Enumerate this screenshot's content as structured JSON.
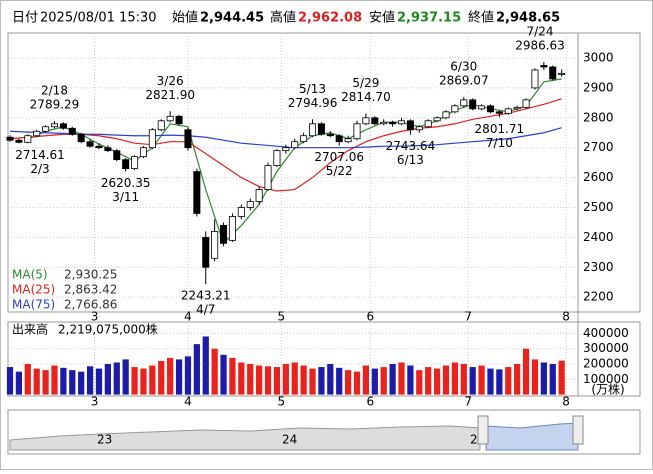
{
  "header": {
    "date_label": "日付",
    "datetime": "2025/08/01 15:30",
    "open_label": "始値",
    "open": {
      "value": 2944.45,
      "label": "2,944.45"
    },
    "high_label": "高値",
    "high": {
      "value": 2962.08,
      "label": "2,962.08"
    },
    "low_label": "安値",
    "low": {
      "value": 2937.15,
      "label": "2,937.15"
    },
    "close_label": "終値",
    "close": {
      "value": 2948.65,
      "label": "2,948.65"
    }
  },
  "chart_data": {
    "type": "candlestick",
    "x": [
      0,
      2,
      4,
      6,
      8,
      10,
      12,
      14,
      16,
      18,
      20,
      22,
      24,
      26,
      28,
      30,
      32,
      34,
      36,
      38,
      40,
      42,
      44,
      46,
      48,
      50,
      52,
      54,
      56,
      58,
      60,
      62,
      64,
      66,
      68,
      70,
      72,
      74,
      76,
      78,
      80,
      82,
      84,
      86,
      88,
      90,
      92,
      94,
      96,
      98,
      100,
      102,
      104,
      106,
      108,
      110,
      112,
      114,
      116,
      118,
      120,
      122,
      124
    ],
    "ohlc": [
      [
        2735,
        2742,
        2720,
        2725
      ],
      [
        2725,
        2730,
        2714.61,
        2718
      ],
      [
        2718,
        2745,
        2715,
        2740
      ],
      [
        2740,
        2760,
        2735,
        2755
      ],
      [
        2755,
        2775,
        2750,
        2770
      ],
      [
        2770,
        2789.29,
        2765,
        2780
      ],
      [
        2780,
        2785,
        2760,
        2765
      ],
      [
        2765,
        2770,
        2740,
        2745
      ],
      [
        2745,
        2750,
        2715,
        2720
      ],
      [
        2720,
        2728,
        2700,
        2705
      ],
      [
        2705,
        2715,
        2695,
        2700
      ],
      [
        2700,
        2708,
        2685,
        2690
      ],
      [
        2690,
        2695,
        2655,
        2660
      ],
      [
        2660,
        2665,
        2620.35,
        2630
      ],
      [
        2630,
        2675,
        2625,
        2670
      ],
      [
        2670,
        2705,
        2665,
        2700
      ],
      [
        2700,
        2765,
        2695,
        2760
      ],
      [
        2760,
        2795,
        2755,
        2790
      ],
      [
        2790,
        2821.9,
        2785,
        2805
      ],
      [
        2805,
        2810,
        2775,
        2780
      ],
      [
        2760,
        2765,
        2690,
        2700
      ],
      [
        2620,
        2630,
        2470,
        2480
      ],
      [
        2400,
        2420,
        2243.21,
        2300
      ],
      [
        2330,
        2460,
        2320,
        2420
      ],
      [
        2440,
        2450,
        2370,
        2380
      ],
      [
        2390,
        2480,
        2385,
        2470
      ],
      [
        2470,
        2510,
        2460,
        2500
      ],
      [
        2500,
        2530,
        2490,
        2520
      ],
      [
        2520,
        2570,
        2510,
        2560
      ],
      [
        2560,
        2650,
        2555,
        2640
      ],
      [
        2640,
        2695,
        2635,
        2690
      ],
      [
        2690,
        2710,
        2680,
        2700
      ],
      [
        2700,
        2730,
        2695,
        2720
      ],
      [
        2720,
        2750,
        2715,
        2740
      ],
      [
        2740,
        2794.96,
        2735,
        2780
      ],
      [
        2780,
        2785,
        2740,
        2745
      ],
      [
        2745,
        2755,
        2735,
        2740
      ],
      [
        2740,
        2745,
        2707.06,
        2720
      ],
      [
        2720,
        2740,
        2715,
        2730
      ],
      [
        2730,
        2790,
        2725,
        2780
      ],
      [
        2780,
        2814.7,
        2775,
        2800
      ],
      [
        2800,
        2805,
        2775,
        2780
      ],
      [
        2780,
        2795,
        2775,
        2785
      ],
      [
        2785,
        2790,
        2770,
        2780
      ],
      [
        2780,
        2800,
        2775,
        2790
      ],
      [
        2790,
        2795,
        2743.64,
        2760
      ],
      [
        2760,
        2775,
        2750,
        2770
      ],
      [
        2770,
        2795,
        2765,
        2790
      ],
      [
        2790,
        2805,
        2785,
        2800
      ],
      [
        2800,
        2825,
        2795,
        2820
      ],
      [
        2820,
        2845,
        2815,
        2840
      ],
      [
        2840,
        2869.07,
        2835,
        2860
      ],
      [
        2860,
        2865,
        2825,
        2830
      ],
      [
        2830,
        2845,
        2825,
        2840
      ],
      [
        2840,
        2845,
        2815,
        2820
      ],
      [
        2820,
        2825,
        2801.71,
        2815
      ],
      [
        2815,
        2835,
        2810,
        2830
      ],
      [
        2830,
        2840,
        2825,
        2835
      ],
      [
        2835,
        2865,
        2830,
        2860
      ],
      [
        2900,
        2965,
        2895,
        2960
      ],
      [
        2975,
        2986.63,
        2960,
        2970
      ],
      [
        2970,
        2975,
        2925,
        2930
      ],
      [
        2944.45,
        2962.08,
        2937.15,
        2948.65
      ]
    ],
    "xlim": [
      0,
      127
    ],
    "ylim": [
      2157,
      3077
    ],
    "xticks": [
      {
        "value": 19,
        "label": "3"
      },
      {
        "value": 40,
        "label": "4"
      },
      {
        "value": 61,
        "label": "5"
      },
      {
        "value": 81,
        "label": "6"
      },
      {
        "value": 103,
        "label": "7"
      },
      {
        "value": 125,
        "label": "8"
      }
    ],
    "yticks": [
      2200,
      2300,
      2400,
      2500,
      2600,
      2700,
      2800,
      2900,
      3000
    ],
    "up_color": "#ffffff",
    "down_color": "#000000",
    "moving_averages": [
      {
        "name": "MA(5)",
        "color": "#2e8b2e",
        "latest": {
          "value": 2930.25,
          "label": "2,930.25"
        },
        "x": [
          4,
          8,
          12,
          16,
          20,
          24,
          28,
          32,
          36,
          40,
          44,
          48,
          52,
          56,
          60,
          64,
          68,
          72,
          76,
          80,
          84,
          88,
          92,
          96,
          100,
          104,
          108,
          112,
          116,
          120,
          124
        ],
        "values": [
          2728,
          2755,
          2770,
          2745,
          2712,
          2685,
          2655,
          2700,
          2780,
          2770,
          2560,
          2380,
          2440,
          2510,
          2620,
          2700,
          2740,
          2750,
          2730,
          2760,
          2785,
          2785,
          2770,
          2790,
          2825,
          2845,
          2830,
          2820,
          2840,
          2920,
          2930.25
        ]
      },
      {
        "name": "MA(25)",
        "color": "#e02020",
        "latest": {
          "value": 2863.42,
          "label": "2,863.42"
        },
        "x": [
          0,
          4,
          8,
          12,
          16,
          20,
          24,
          28,
          32,
          36,
          40,
          44,
          48,
          52,
          56,
          60,
          64,
          68,
          72,
          76,
          80,
          84,
          88,
          92,
          96,
          100,
          104,
          108,
          112,
          116,
          120,
          124
        ],
        "values": [
          2730,
          2735,
          2740,
          2745,
          2745,
          2740,
          2730,
          2715,
          2710,
          2720,
          2720,
          2680,
          2640,
          2600,
          2570,
          2555,
          2560,
          2600,
          2650,
          2690,
          2720,
          2740,
          2755,
          2765,
          2770,
          2780,
          2795,
          2805,
          2815,
          2830,
          2845,
          2863.42
        ]
      },
      {
        "name": "MA(75)",
        "color": "#2a3fd0",
        "latest": {
          "value": 2766.86,
          "label": "2,766.86"
        },
        "x": [
          0,
          4,
          8,
          12,
          16,
          20,
          24,
          28,
          32,
          36,
          40,
          44,
          48,
          52,
          56,
          60,
          64,
          68,
          72,
          76,
          80,
          84,
          88,
          92,
          96,
          100,
          104,
          108,
          112,
          116,
          120,
          124
        ],
        "values": [
          2755,
          2752,
          2750,
          2748,
          2745,
          2745,
          2742,
          2740,
          2740,
          2742,
          2740,
          2735,
          2725,
          2715,
          2710,
          2705,
          2700,
          2700,
          2700,
          2700,
          2702,
          2705,
          2705,
          2707,
          2710,
          2715,
          2720,
          2725,
          2730,
          2740,
          2750,
          2766.86
        ]
      }
    ],
    "annotations": [
      {
        "date": "2/3",
        "value": 2714.61,
        "x": 2,
        "pos": "below"
      },
      {
        "date": "2/18",
        "value": 2789.29,
        "x": 10,
        "pos": "above"
      },
      {
        "date": "3/11",
        "value": 2620.35,
        "x": 26,
        "pos": "below"
      },
      {
        "date": "3/26",
        "value": {
          "value": 2821.9,
          "label": "2821.90"
        },
        "x": 36,
        "pos": "above"
      },
      {
        "date": "4/7",
        "value": 2243.21,
        "x": 44,
        "pos": "below"
      },
      {
        "date": "5/13",
        "value": 2794.96,
        "x": 68,
        "pos": "above"
      },
      {
        "date": "5/22",
        "value": 2707.06,
        "x": 74,
        "pos": "below"
      },
      {
        "date": "5/29",
        "value": {
          "value": 2814.7,
          "label": "2814.70"
        },
        "x": 80,
        "pos": "above"
      },
      {
        "date": "6/13",
        "value": 2743.64,
        "x": 90,
        "pos": "below"
      },
      {
        "date": "6/30",
        "value": 2869.07,
        "x": 102,
        "pos": "above"
      },
      {
        "date": "7/10",
        "value": 2801.71,
        "x": 110,
        "pos": "below"
      },
      {
        "date": "7/24",
        "value": 2986.63,
        "x": 120,
        "pos": "above"
      }
    ],
    "volume": {
      "label": "出来高",
      "latest": {
        "value": 2219075000,
        "label": "2,219,075,000株"
      },
      "unit": "(万株)",
      "up_color": "#e8221c",
      "down_color": "#1c1ca8",
      "values": [
        180000,
        150000,
        200000,
        170000,
        160000,
        190000,
        175000,
        160000,
        150000,
        185000,
        170000,
        200000,
        210000,
        230000,
        180000,
        170000,
        190000,
        220000,
        240000,
        230000,
        250000,
        330000,
        380000,
        300000,
        260000,
        240000,
        210000,
        200000,
        190000,
        185000,
        180000,
        200000,
        210000,
        190000,
        170000,
        180000,
        200000,
        175000,
        160000,
        150000,
        190000,
        170000,
        180000,
        200000,
        210000,
        190000,
        160000,
        180000,
        170000,
        190000,
        210000,
        200000,
        180000,
        190000,
        170000,
        165000,
        180000,
        200000,
        300000,
        230000,
        210000,
        200000,
        221907.5
      ],
      "ylim": [
        0,
        455000
      ],
      "yticks": [
        100000,
        200000,
        300000,
        400000
      ]
    },
    "navigator_labels": [
      "23",
      "24",
      "2"
    ]
  }
}
